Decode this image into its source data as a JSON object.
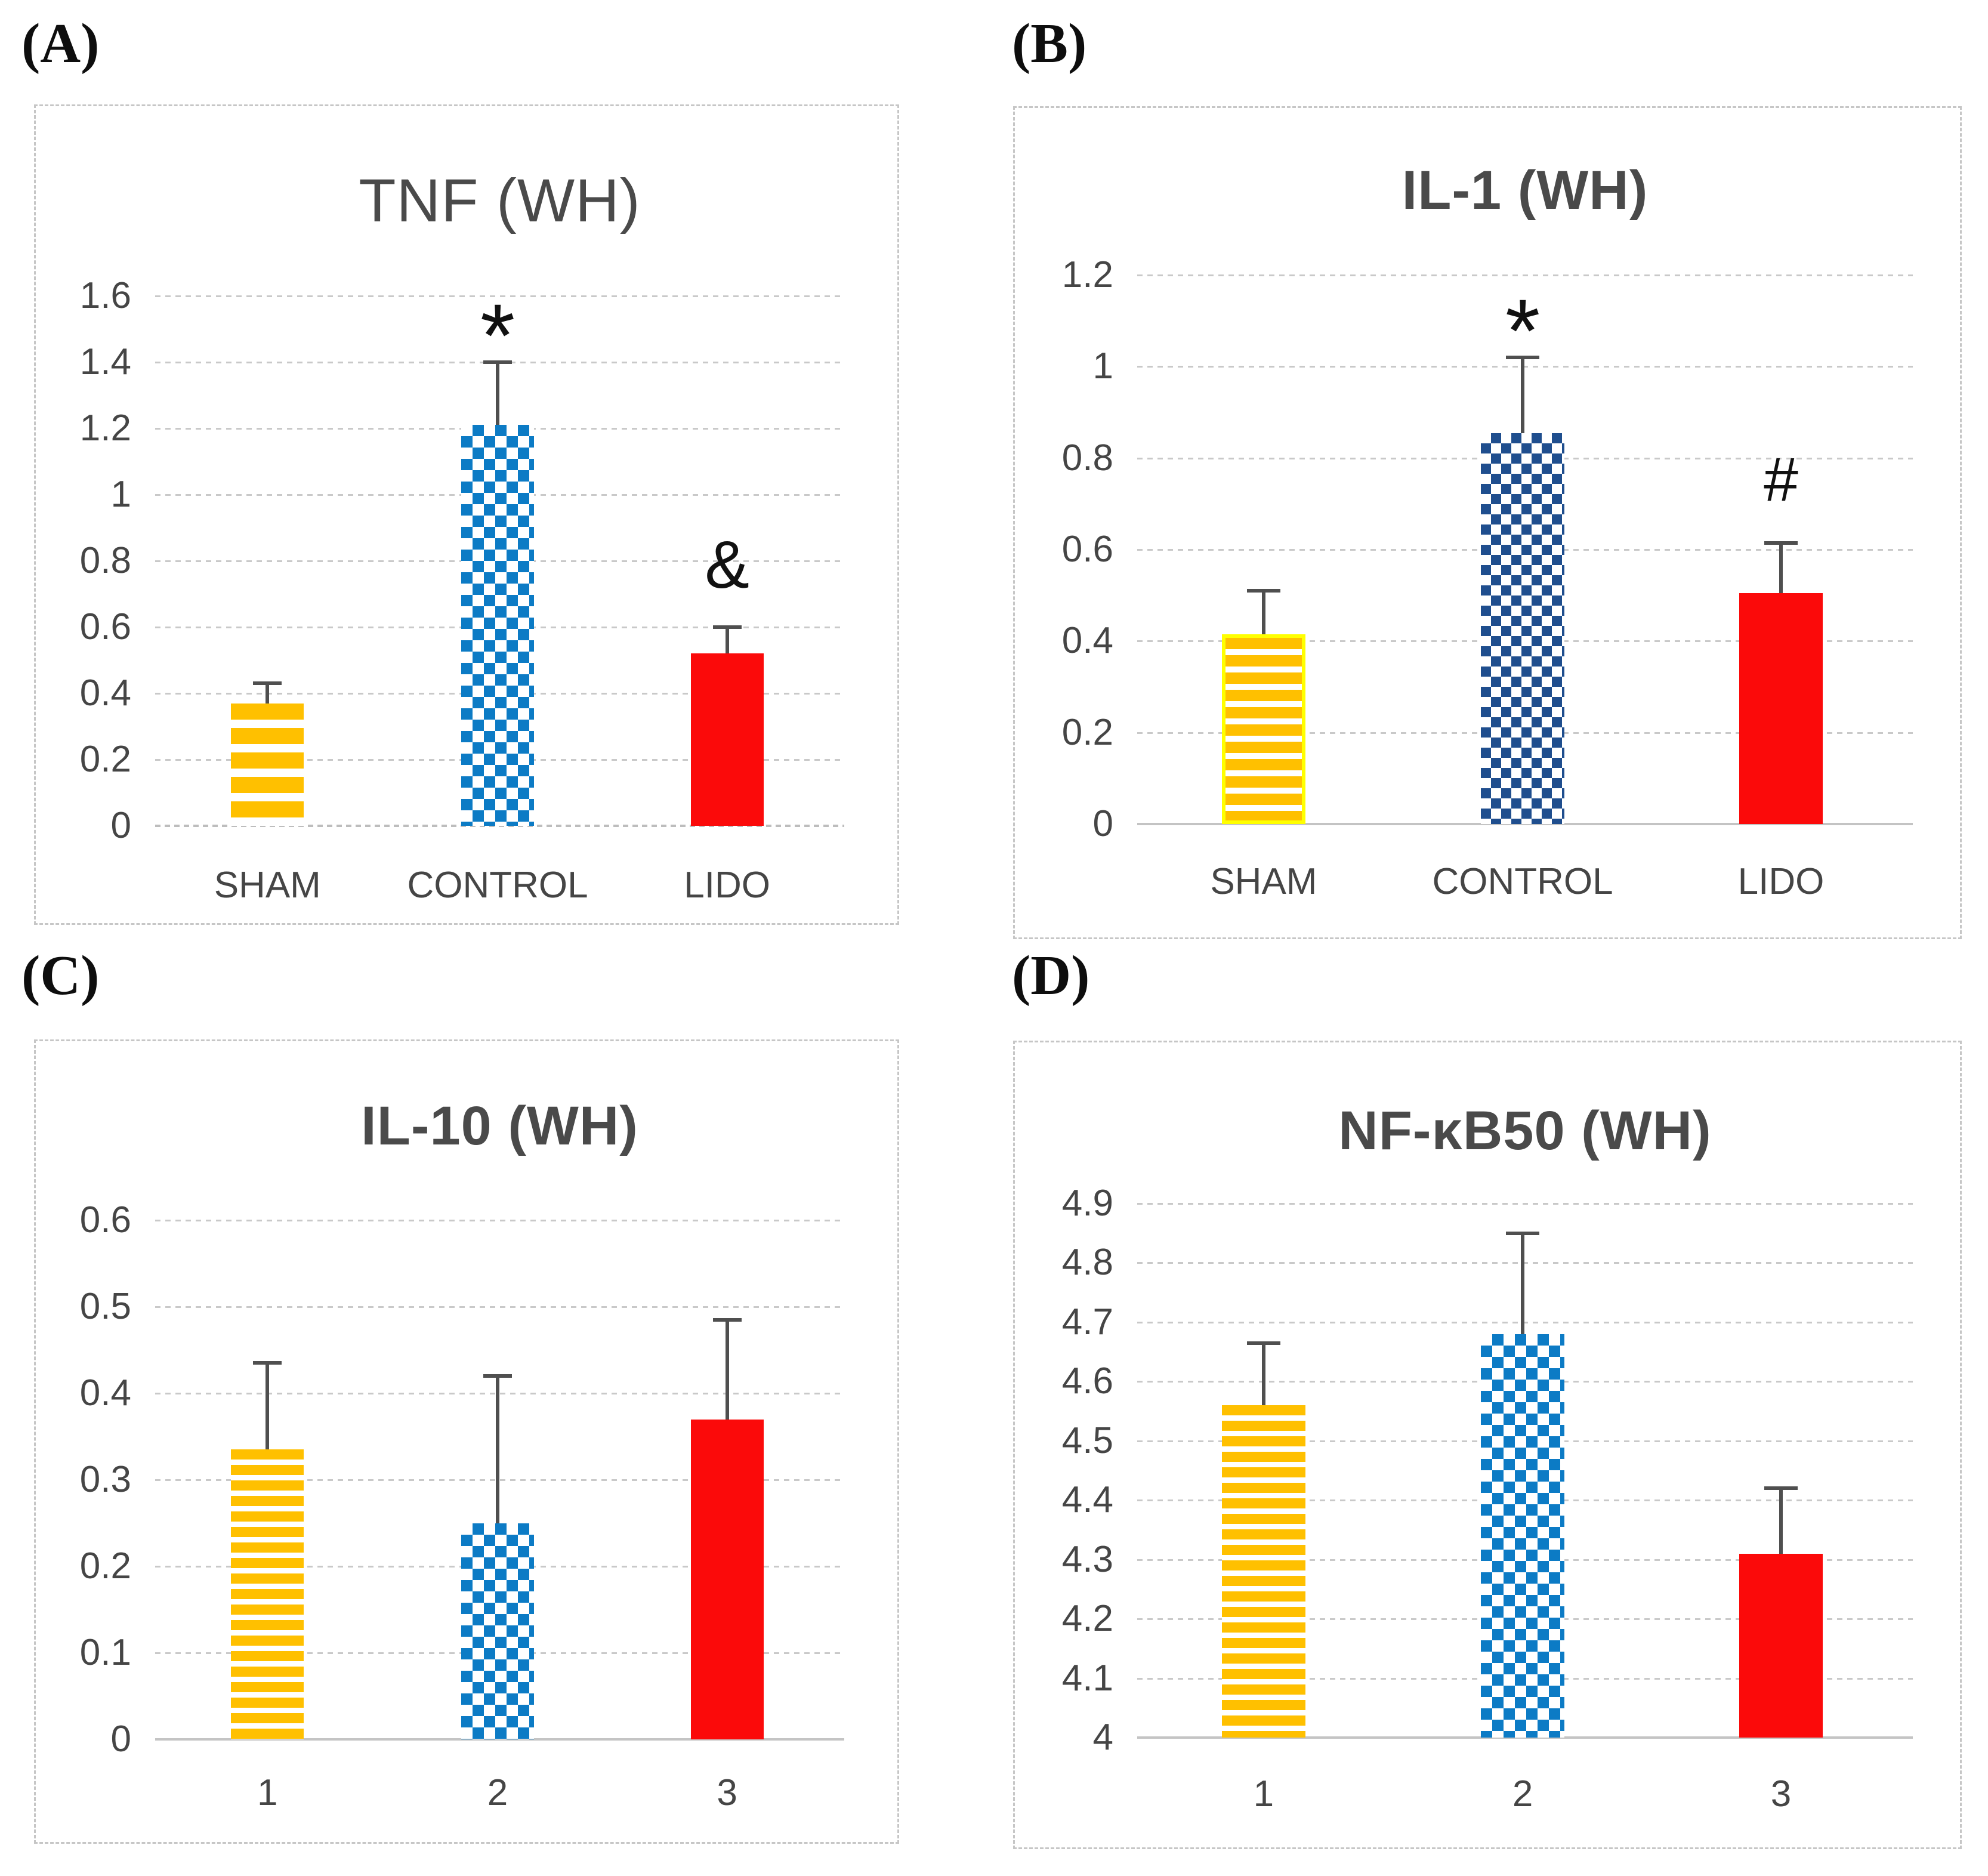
{
  "figure": {
    "description": "Four-panel bar chart figure with panels (A)-(D)",
    "background": "#ffffff"
  },
  "colors": {
    "panel_border": "#c6c6c6",
    "gridline": "#c9c9c9",
    "axis_line": "#c4c4c4",
    "title_text": "#4a4a4a",
    "tick_text": "#454545",
    "letter_text": "#0e0e0e",
    "marker_text": "#111111",
    "error_bar": "#4f4f4f",
    "stripe_yellow": "#FFC000",
    "stripe_outline_yellow": "#FFFF00",
    "checker_blue": "#0C7BC5",
    "checker_navy": "#1F4E8E",
    "bar_red": "#FB0A0A"
  },
  "chart_data": [
    {
      "panel_label": "(A)",
      "type": "bar",
      "title": "TNF (WH)",
      "categories": [
        "SHAM",
        "CONTROL",
        "LIDO"
      ],
      "values": [
        0.37,
        1.21,
        0.52
      ],
      "error_top": [
        0.43,
        1.4,
        0.6
      ],
      "sig_markers": [
        "",
        "*",
        "&"
      ],
      "ylim": [
        0,
        1.6
      ],
      "ytick_values": [
        0,
        0.2,
        0.4,
        0.6,
        0.8,
        1,
        1.2,
        1.4,
        1.6
      ],
      "ytick_labels": [
        "0",
        "0.2",
        "0.4",
        "0.6",
        "0.8",
        "1",
        "1.2",
        "1.4",
        "1.6"
      ],
      "bar_styles": [
        "stripes-a",
        "checker-blue",
        "solid-red"
      ],
      "grid": "horizontal-dashed",
      "legend": "none"
    },
    {
      "panel_label": "(B)",
      "type": "bar",
      "title": "IL-1 (WH)",
      "categories": [
        "SHAM",
        "CONTROL",
        "LIDO"
      ],
      "values": [
        0.415,
        0.855,
        0.505
      ],
      "error_top": [
        0.51,
        1.02,
        0.615
      ],
      "sig_markers": [
        "",
        "*",
        "#"
      ],
      "ylim": [
        0,
        1.2
      ],
      "ytick_values": [
        0,
        0.2,
        0.4,
        0.6,
        0.8,
        1,
        1.2
      ],
      "ytick_labels": [
        "0",
        "0.2",
        "0.4",
        "0.6",
        "0.8",
        "1",
        "1.2"
      ],
      "bar_styles": [
        "stripes-b",
        "checker-navy",
        "solid-red"
      ],
      "grid": "horizontal-dashed",
      "legend": "none"
    },
    {
      "panel_label": "(C)",
      "type": "bar",
      "title": "IL-10 (WH)",
      "categories": [
        "1",
        "2",
        "3"
      ],
      "values": [
        0.335,
        0.25,
        0.37
      ],
      "error_top": [
        0.435,
        0.42,
        0.485
      ],
      "sig_markers": [
        "",
        "",
        ""
      ],
      "ylim": [
        0,
        0.6
      ],
      "ytick_values": [
        0,
        0.1,
        0.2,
        0.3,
        0.4,
        0.5,
        0.6
      ],
      "ytick_labels": [
        "0",
        "0.1",
        "0.2",
        "0.3",
        "0.4",
        "0.5",
        "0.6"
      ],
      "bar_styles": [
        "stripes-fine",
        "checker-blue",
        "solid-red"
      ],
      "grid": "horizontal-dashed",
      "legend": "none"
    },
    {
      "panel_label": "(D)",
      "type": "bar",
      "title": "NF-κB50 (WH)",
      "categories": [
        "1",
        "2",
        "3"
      ],
      "values": [
        4.56,
        4.68,
        4.31
      ],
      "error_top": [
        4.665,
        4.85,
        4.42
      ],
      "sig_markers": [
        "",
        "",
        ""
      ],
      "ylim": [
        4,
        4.9
      ],
      "ytick_values": [
        4,
        4.1,
        4.2,
        4.3,
        4.4,
        4.5,
        4.6,
        4.7,
        4.8,
        4.9
      ],
      "ytick_labels": [
        "4",
        "4.1",
        "4.2",
        "4.3",
        "4.4",
        "4.5",
        "4.6",
        "4.7",
        "4.8",
        "4.9"
      ],
      "bar_styles": [
        "stripes-fine",
        "checker-blue",
        "solid-red"
      ],
      "grid": "horizontal-dashed",
      "legend": "none"
    }
  ]
}
